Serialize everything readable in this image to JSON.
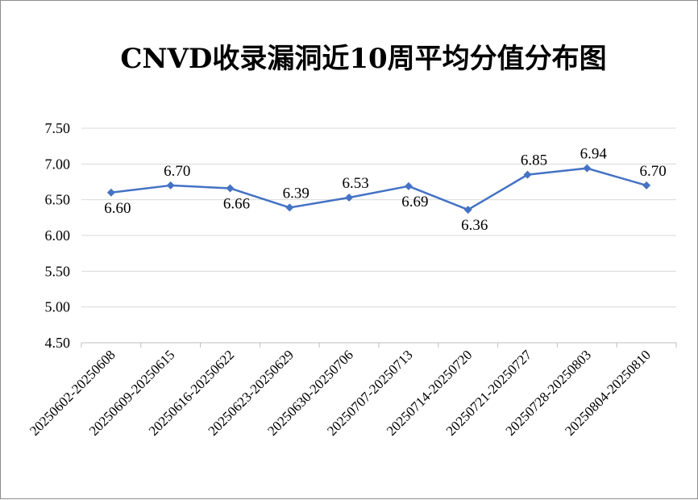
{
  "chart_data": {
    "type": "line",
    "title": "CNVD收录漏洞近10周平均分值分布图",
    "xlabel": "",
    "ylabel": "",
    "categories": [
      "20250602-20250608",
      "20250609-20250615",
      "20250616-20250622",
      "20250623-20250629",
      "20250630-20250706",
      "20250707-20250713",
      "20250714-20250720",
      "20250721-20250727",
      "20250728-20250803",
      "20250804-20250810"
    ],
    "values": [
      6.6,
      6.7,
      6.66,
      6.39,
      6.53,
      6.69,
      6.36,
      6.85,
      6.94,
      6.7
    ],
    "data_labels": [
      "6.60",
      "6.70",
      "6.66",
      "6.39",
      "6.53",
      "6.69",
      "6.36",
      "6.85",
      "6.94",
      "6.70"
    ],
    "ylim": [
      4.5,
      7.5
    ],
    "yticks": [
      "4.50",
      "5.00",
      "5.50",
      "6.00",
      "6.50",
      "7.00",
      "7.50"
    ],
    "grid": true,
    "legend": "none",
    "colors": {
      "line": "#4472C4",
      "grid": "#d9d9d9",
      "axis": "#bfbfbf"
    }
  }
}
